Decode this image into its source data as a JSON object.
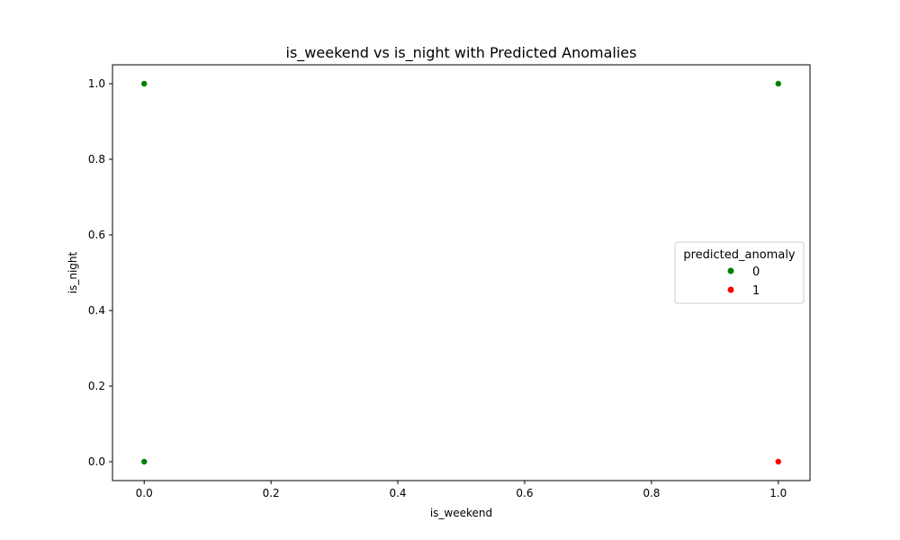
{
  "chart_data": {
    "type": "scatter",
    "title": "is_weekend vs is_night with Predicted Anomalies",
    "xlabel": "is_weekend",
    "ylabel": "is_night",
    "xlim": [
      -0.05,
      1.05
    ],
    "ylim": [
      -0.05,
      1.05
    ],
    "xticks": [
      "0.0",
      "0.2",
      "0.4",
      "0.6",
      "0.8",
      "1.0"
    ],
    "yticks": [
      "0.0",
      "0.2",
      "0.4",
      "0.6",
      "0.8",
      "1.0"
    ],
    "grid": false,
    "legend": {
      "title": "predicted_anomaly",
      "placement": "center-right"
    },
    "series": [
      {
        "name": "0",
        "color": "#008000",
        "points": [
          {
            "x": 0.0,
            "y": 1.0
          },
          {
            "x": 1.0,
            "y": 1.0
          },
          {
            "x": 0.0,
            "y": 0.0
          }
        ]
      },
      {
        "name": "1",
        "color": "#ff0000",
        "points": [
          {
            "x": 1.0,
            "y": 0.0
          }
        ]
      }
    ]
  }
}
